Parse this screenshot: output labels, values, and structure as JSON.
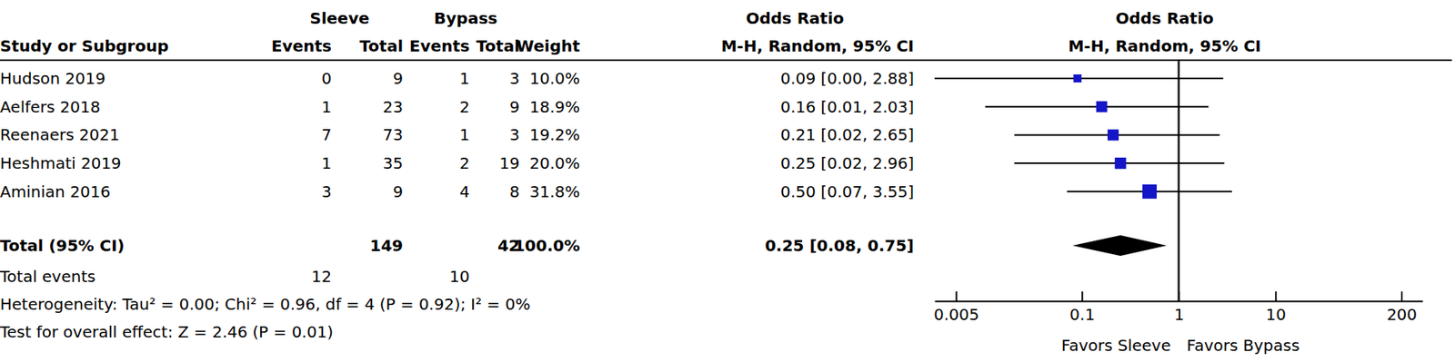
{
  "chart_data": {
    "type": "forest",
    "group_headers": [
      "Sleeve",
      "Bypass",
      "Odds Ratio",
      "Odds Ratio"
    ],
    "column_headers": [
      "Study or Subgroup",
      "Events",
      "Total",
      "Events",
      "Total",
      "Weight",
      "M-H, Random, 95% CI",
      "M-H, Random, 95% CI"
    ],
    "studies": [
      "Hudson 2019",
      "Aelfers 2018",
      "Reenaers 2021",
      "Heshmati 2019",
      "Aminian 2016"
    ],
    "sleeve_events": [
      0,
      1,
      7,
      1,
      3
    ],
    "sleeve_total": [
      9,
      23,
      73,
      35,
      9
    ],
    "bypass_events": [
      1,
      2,
      1,
      2,
      4
    ],
    "bypass_total": [
      3,
      9,
      3,
      19,
      8
    ],
    "weight": [
      10.0,
      18.9,
      19.2,
      20.0,
      31.8
    ],
    "weight_labels": [
      "10.0%",
      "18.9%",
      "19.2%",
      "20.0%",
      "31.8%"
    ],
    "values": [
      0.09,
      0.16,
      0.21,
      0.25,
      0.5
    ],
    "ci_lower": [
      0.0028,
      0.01,
      0.02,
      0.02,
      0.07
    ],
    "ci_upper": [
      2.88,
      2.03,
      2.65,
      2.96,
      3.55
    ],
    "ci_labels": [
      "0.09 [0.00, 2.88]",
      "0.16 [0.01, 2.03]",
      "0.21 [0.02, 2.65]",
      "0.25 [0.02, 2.96]",
      "0.50 [0.07, 3.55]"
    ],
    "total": {
      "label": "Total (95% CI)",
      "sleeve_total": 149,
      "bypass_total": 42,
      "weight": 100.0,
      "weight_label": "100.0%",
      "value": 0.25,
      "ci_lower": 0.08,
      "ci_upper": 0.75,
      "ci_label": "0.25 [0.08, 0.75]"
    },
    "total_events": {
      "label": "Total events",
      "sleeve": 12,
      "bypass": 10
    },
    "heterogeneity": "Heterogeneity: Tau² = 0.00; Chi² = 0.96, df = 4 (P = 0.92); I² = 0%",
    "overall_effect": "Test for overall effect: Z = 2.46 (P = 0.01)",
    "x_labels": [
      "Favors Sleeve",
      "Favors Bypass"
    ],
    "reference_line": 1,
    "log": "x",
    "xlim": [
      0.003,
      330
    ],
    "xticks": [
      0.005,
      0.1,
      1,
      10,
      200
    ],
    "color": "#1414c8"
  }
}
